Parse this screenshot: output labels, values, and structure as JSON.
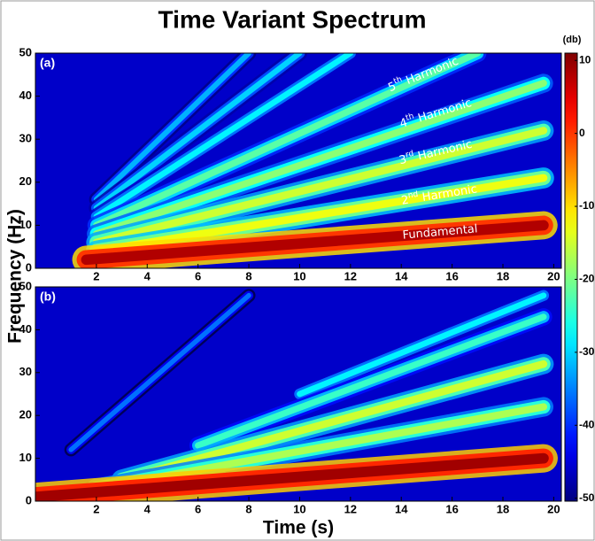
{
  "chart_data": [
    {
      "type": "spectrogram",
      "title": "Time Variant Spectrum",
      "panel": "(a)",
      "ylabel": "Frequency (Hz)",
      "xlim": [
        -0.4,
        20.3
      ],
      "ylim": [
        0,
        50
      ],
      "xticks": [
        2,
        4,
        6,
        8,
        10,
        12,
        14,
        16,
        18,
        20
      ],
      "yticks": [
        0,
        10,
        20,
        30,
        40,
        50
      ],
      "background": -46,
      "colorbar": {
        "label": "(db)",
        "colormap": "jet",
        "lim": [
          -50.4,
          11
        ],
        "ticks": [
          10,
          0,
          -10,
          -20,
          -30,
          -40,
          -50
        ]
      },
      "ridges": [
        {
          "x": [
            2,
            8
          ],
          "values": [
            16,
            50
          ],
          "level": -32
        },
        {
          "x": [
            2,
            10
          ],
          "values": [
            14,
            50
          ],
          "level": -30
        },
        {
          "x": [
            2,
            12
          ],
          "values": [
            12,
            50
          ],
          "level": -28
        },
        {
          "x": [
            2,
            17
          ],
          "values": [
            10,
            50
          ],
          "level": -22
        },
        {
          "x": [
            2,
            19.6
          ],
          "values": [
            8,
            43
          ],
          "level": -19
        },
        {
          "x": [
            2,
            19.6
          ],
          "values": [
            6,
            32
          ],
          "level": -15
        },
        {
          "x": [
            2,
            19.6
          ],
          "values": [
            4,
            21
          ],
          "level": -13
        },
        {
          "x": [
            1.6,
            19.6
          ],
          "values": [
            2,
            10
          ],
          "level": 8
        }
      ],
      "annotations": [
        {
          "base": "5",
          "sup": "th",
          "text": " Harmonic"
        },
        {
          "base": "4",
          "sup": "th",
          "text": " Harmonic"
        },
        {
          "base": "3",
          "sup": "rd",
          "text": " Harmonic"
        },
        {
          "base": "2",
          "sup": "nd",
          "text": " Harmonic"
        },
        {
          "base": "Fundamental"
        }
      ]
    },
    {
      "type": "spectrogram",
      "panel": "(b)",
      "xlabel": "Time (s)",
      "xlim": [
        -0.4,
        20.3
      ],
      "ylim": [
        0,
        50
      ],
      "xticks": [
        2,
        4,
        6,
        8,
        10,
        12,
        14,
        16,
        18,
        20
      ],
      "yticks": [
        0,
        10,
        20,
        30,
        40,
        50
      ],
      "background": -46,
      "ridges": [
        {
          "x": [
            1,
            8
          ],
          "values": [
            12,
            48
          ],
          "level": -36
        },
        {
          "x": [
            10,
            19.6
          ],
          "values": [
            25,
            48
          ],
          "level": -28
        },
        {
          "x": [
            6,
            19.6
          ],
          "values": [
            13,
            43
          ],
          "level": -24
        },
        {
          "x": [
            3,
            19.6
          ],
          "values": [
            5,
            32
          ],
          "level": -15
        },
        {
          "x": [
            2,
            19.6
          ],
          "values": [
            3,
            22
          ],
          "level": -17
        },
        {
          "x": [
            -0.4,
            19.6
          ],
          "values": [
            1,
            10
          ],
          "level": 9
        }
      ]
    }
  ]
}
